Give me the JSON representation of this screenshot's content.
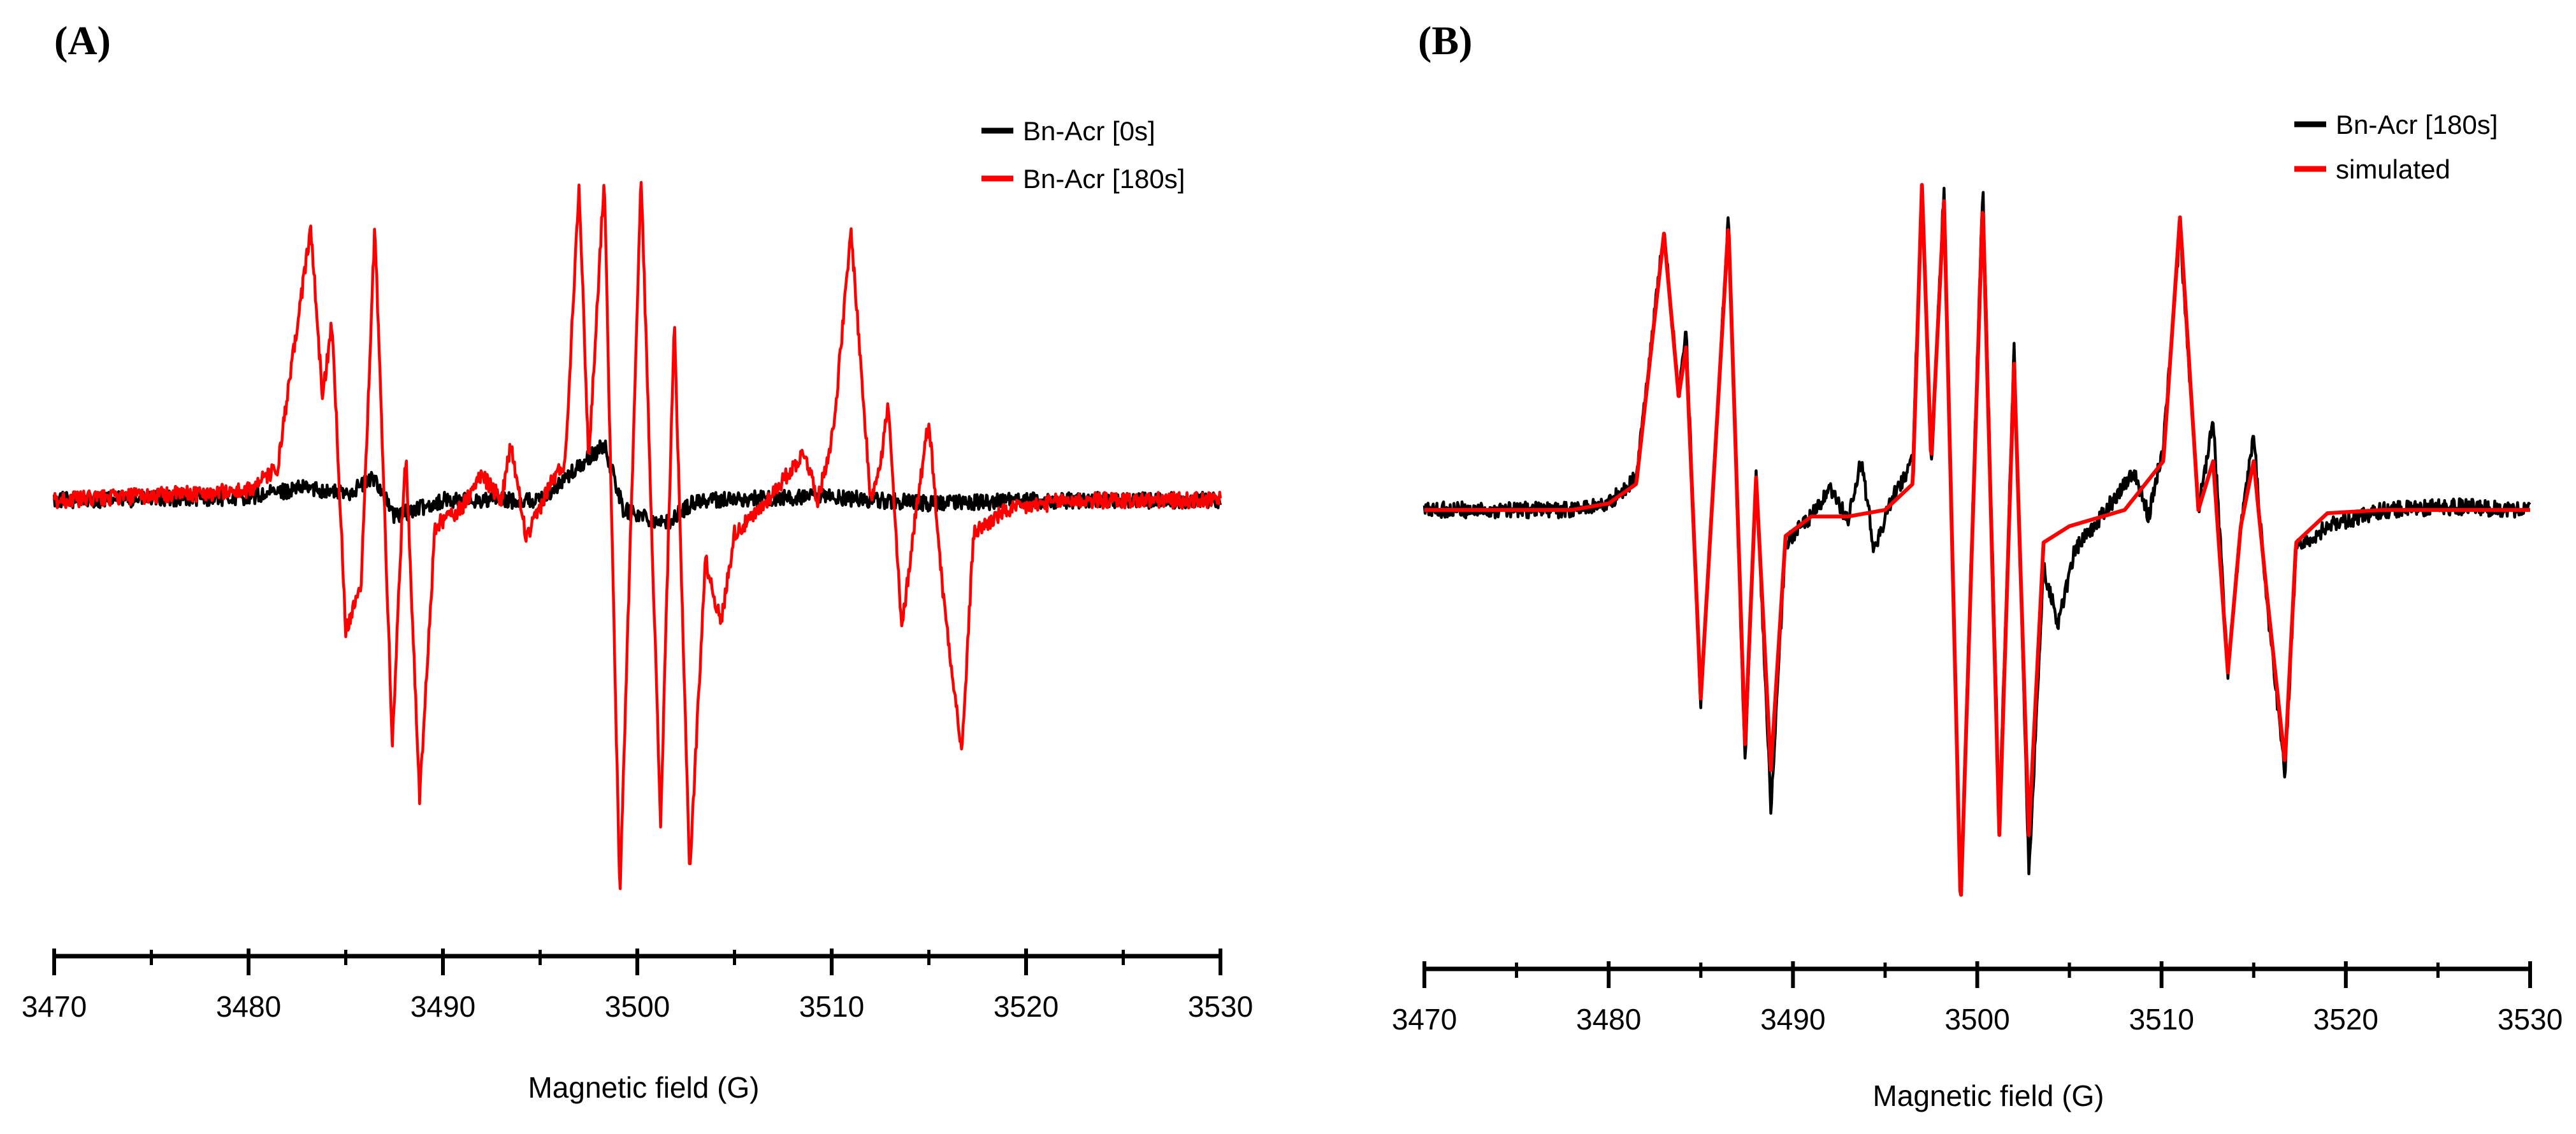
{
  "figure": {
    "panels": [
      "(A)",
      "(B)"
    ]
  },
  "chart_data": [
    {
      "panel_label": "(A)",
      "type": "line",
      "xlabel": "Magnetic field (G)",
      "ylabel": "",
      "xlim": [
        3470,
        3530
      ],
      "xticks": [
        3470,
        3480,
        3490,
        3500,
        3510,
        3520,
        3530
      ],
      "ylim": [
        -1.05,
        1.05
      ],
      "grid": false,
      "legend_position": "top-right",
      "series": [
        {
          "name": "Bn-Acr [0s]",
          "color": "#000000",
          "points": [
            [
              3470,
              0.0
            ],
            [
              3480,
              0.01
            ],
            [
              3483,
              0.04
            ],
            [
              3485,
              0.02
            ],
            [
              3486.5,
              0.07
            ],
            [
              3487.5,
              -0.05
            ],
            [
              3490,
              0.0
            ],
            [
              3495,
              0.0
            ],
            [
              3498.3,
              0.17
            ],
            [
              3499.3,
              -0.03
            ],
            [
              3501.5,
              -0.07
            ],
            [
              3503,
              0.0
            ],
            [
              3510,
              0.01
            ],
            [
              3515,
              -0.01
            ],
            [
              3520,
              0.0
            ],
            [
              3530,
              0.0
            ]
          ]
        },
        {
          "name": "Bn-Acr [180s]",
          "color": "#ff0000",
          "points": [
            [
              3470,
              0.0
            ],
            [
              3480,
              0.03
            ],
            [
              3481.5,
              0.1
            ],
            [
              3483.2,
              0.84
            ],
            [
              3483.8,
              0.32
            ],
            [
              3484.3,
              0.55
            ],
            [
              3485,
              -0.4
            ],
            [
              3485.8,
              -0.25
            ],
            [
              3486.5,
              0.85
            ],
            [
              3487.4,
              -0.75
            ],
            [
              3487.9,
              -0.05
            ],
            [
              3488.1,
              0.14
            ],
            [
              3488.8,
              -0.92
            ],
            [
              3489.6,
              -0.08
            ],
            [
              3491,
              -0.02
            ],
            [
              3492,
              0.08
            ],
            [
              3493,
              0.0
            ],
            [
              3493.5,
              0.17
            ],
            [
              3494.3,
              -0.12
            ],
            [
              3495.5,
              0.05
            ],
            [
              3496.3,
              0.12
            ],
            [
              3497,
              0.98
            ],
            [
              3497.5,
              0.12
            ],
            [
              3498.3,
              1.0
            ],
            [
              3499.1,
              -1.22
            ],
            [
              3500.2,
              1.0
            ],
            [
              3501.2,
              -1.0
            ],
            [
              3501.9,
              0.55
            ],
            [
              3502.7,
              -1.15
            ],
            [
              3503.5,
              -0.18
            ],
            [
              3504.3,
              -0.38
            ],
            [
              3505,
              -0.1
            ],
            [
              3506,
              -0.05
            ],
            [
              3508,
              0.1
            ],
            [
              3508.6,
              0.15
            ],
            [
              3509.3,
              0.0
            ],
            [
              3510.1,
              0.22
            ],
            [
              3511,
              0.83
            ],
            [
              3512,
              0.0
            ],
            [
              3512.6,
              0.15
            ],
            [
              3512.9,
              0.3
            ],
            [
              3513.6,
              -0.4
            ],
            [
              3514.3,
              -0.05
            ],
            [
              3515,
              0.25
            ],
            [
              3515.7,
              -0.27
            ],
            [
              3516.7,
              -0.78
            ],
            [
              3517.3,
              -0.1
            ],
            [
              3519,
              -0.03
            ],
            [
              3522,
              0.0
            ],
            [
              3525,
              0.0
            ],
            [
              3530,
              0.0
            ]
          ]
        }
      ]
    },
    {
      "panel_label": "(B)",
      "type": "line",
      "xlabel": "Magnetic field (G)",
      "ylabel": "",
      "xlim": [
        3470,
        3530
      ],
      "xticks": [
        3470,
        3480,
        3490,
        3500,
        3510,
        3520,
        3530
      ],
      "ylim": [
        -1.05,
        1.05
      ],
      "grid": false,
      "legend_position": "top-right",
      "series": [
        {
          "name": "Bn-Acr [180s]",
          "color": "#000000",
          "points": [
            [
              3470,
              0.0
            ],
            [
              3478,
              0.0
            ],
            [
              3480,
              0.02
            ],
            [
              3481.5,
              0.1
            ],
            [
              3483,
              0.86
            ],
            [
              3483.8,
              0.35
            ],
            [
              3484.2,
              0.55
            ],
            [
              3485,
              -0.6
            ],
            [
              3486.5,
              0.9
            ],
            [
              3487.4,
              -0.78
            ],
            [
              3488,
              0.12
            ],
            [
              3488.8,
              -0.92
            ],
            [
              3489.6,
              -0.1
            ],
            [
              3491,
              -0.02
            ],
            [
              3492,
              0.06
            ],
            [
              3493,
              -0.03
            ],
            [
              3493.7,
              0.15
            ],
            [
              3494.4,
              -0.12
            ],
            [
              3495.5,
              0.05
            ],
            [
              3496.5,
              0.15
            ],
            [
              3497,
              1.0
            ],
            [
              3497.5,
              0.12
            ],
            [
              3498.2,
              1.0
            ],
            [
              3499.1,
              -1.2
            ],
            [
              3500.3,
              1.0
            ],
            [
              3501.2,
              -0.95
            ],
            [
              3502,
              0.5
            ],
            [
              3502.8,
              -1.12
            ],
            [
              3503.6,
              -0.18
            ],
            [
              3504.4,
              -0.35
            ],
            [
              3505.3,
              -0.12
            ],
            [
              3507,
              0.0
            ],
            [
              3508.5,
              0.12
            ],
            [
              3509.3,
              -0.02
            ],
            [
              3510.1,
              0.2
            ],
            [
              3511,
              0.86
            ],
            [
              3512,
              0.0
            ],
            [
              3512.8,
              0.28
            ],
            [
              3513.6,
              -0.5
            ],
            [
              3514.3,
              -0.05
            ],
            [
              3515,
              0.23
            ],
            [
              3515.7,
              -0.28
            ],
            [
              3516.7,
              -0.82
            ],
            [
              3517.3,
              -0.12
            ],
            [
              3519,
              -0.05
            ],
            [
              3522,
              0.0
            ],
            [
              3526,
              0.01
            ],
            [
              3530,
              0.0
            ]
          ]
        },
        {
          "name": "simulated",
          "color": "#ff0000",
          "points": [
            [
              3470,
              0.0
            ],
            [
              3478,
              0.0
            ],
            [
              3480,
              0.02
            ],
            [
              3481.5,
              0.08
            ],
            [
              3483,
              0.85
            ],
            [
              3483.8,
              0.35
            ],
            [
              3484.2,
              0.5
            ],
            [
              3485,
              -0.58
            ],
            [
              3486.5,
              0.88
            ],
            [
              3487.4,
              -0.72
            ],
            [
              3488,
              0.1
            ],
            [
              3488.8,
              -0.8
            ],
            [
              3489.6,
              -0.08
            ],
            [
              3491,
              -0.02
            ],
            [
              3493,
              -0.02
            ],
            [
              3495,
              0.0
            ],
            [
              3496.5,
              0.08
            ],
            [
              3497,
              1.0
            ],
            [
              3497.5,
              0.15
            ],
            [
              3498.2,
              0.95
            ],
            [
              3499.1,
              -1.22
            ],
            [
              3500.3,
              0.95
            ],
            [
              3501.2,
              -1.0
            ],
            [
              3502,
              0.45
            ],
            [
              3502.8,
              -1.0
            ],
            [
              3503.6,
              -0.1
            ],
            [
              3505,
              -0.05
            ],
            [
              3508,
              0.0
            ],
            [
              3510.1,
              0.15
            ],
            [
              3511,
              0.9
            ],
            [
              3512,
              0.0
            ],
            [
              3512.8,
              0.15
            ],
            [
              3513.6,
              -0.5
            ],
            [
              3514.3,
              -0.05
            ],
            [
              3515,
              0.15
            ],
            [
              3515.7,
              -0.25
            ],
            [
              3516.7,
              -0.78
            ],
            [
              3517.3,
              -0.1
            ],
            [
              3519,
              -0.01
            ],
            [
              3522,
              0.0
            ],
            [
              3530,
              0.0
            ]
          ]
        }
      ]
    }
  ]
}
